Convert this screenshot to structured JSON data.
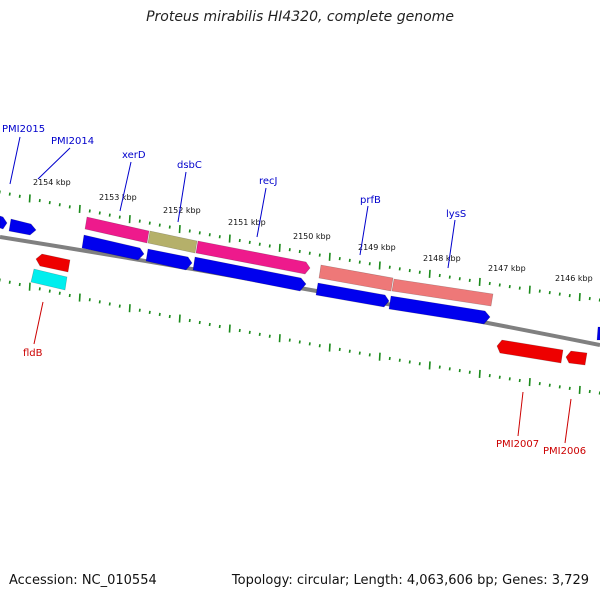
{
  "title": "Proteus mirabilis HI4320, complete genome",
  "footer": {
    "accession": "Accession: NC_010554",
    "stats": "Topology: circular; Length: 4,063,606 bp; Genes: 3,729"
  },
  "colors": {
    "backbone": "#808080",
    "tick": "#1a8a1a",
    "blue_gene": "#0000ee",
    "red_gene": "#ee0000",
    "cyan_gene": "#00eeee",
    "magenta_gene": "#ee1a8c",
    "olive_gene": "#b5b06a",
    "salmon_gene": "#ee7878",
    "label_blue": "#0000cc",
    "label_red": "#cc0000"
  },
  "scale_labels": [
    "2154 kbp",
    "2153 kbp",
    "2152 kbp",
    "2151 kbp",
    "2150 kbp",
    "2149 kbp",
    "2148 kbp",
    "2147 kbp",
    "2146 kbp"
  ],
  "gene_labels": {
    "pmi2015": "PMI2015",
    "pmi2014": "PMI2014",
    "xerd": "xerD",
    "dsbc": "dsbC",
    "recj": "recJ",
    "prfb": "prfB",
    "lyss": "lysS",
    "fldb": "fldB",
    "pmi2007": "PMI2007",
    "pmi2006": "PMI2006"
  }
}
